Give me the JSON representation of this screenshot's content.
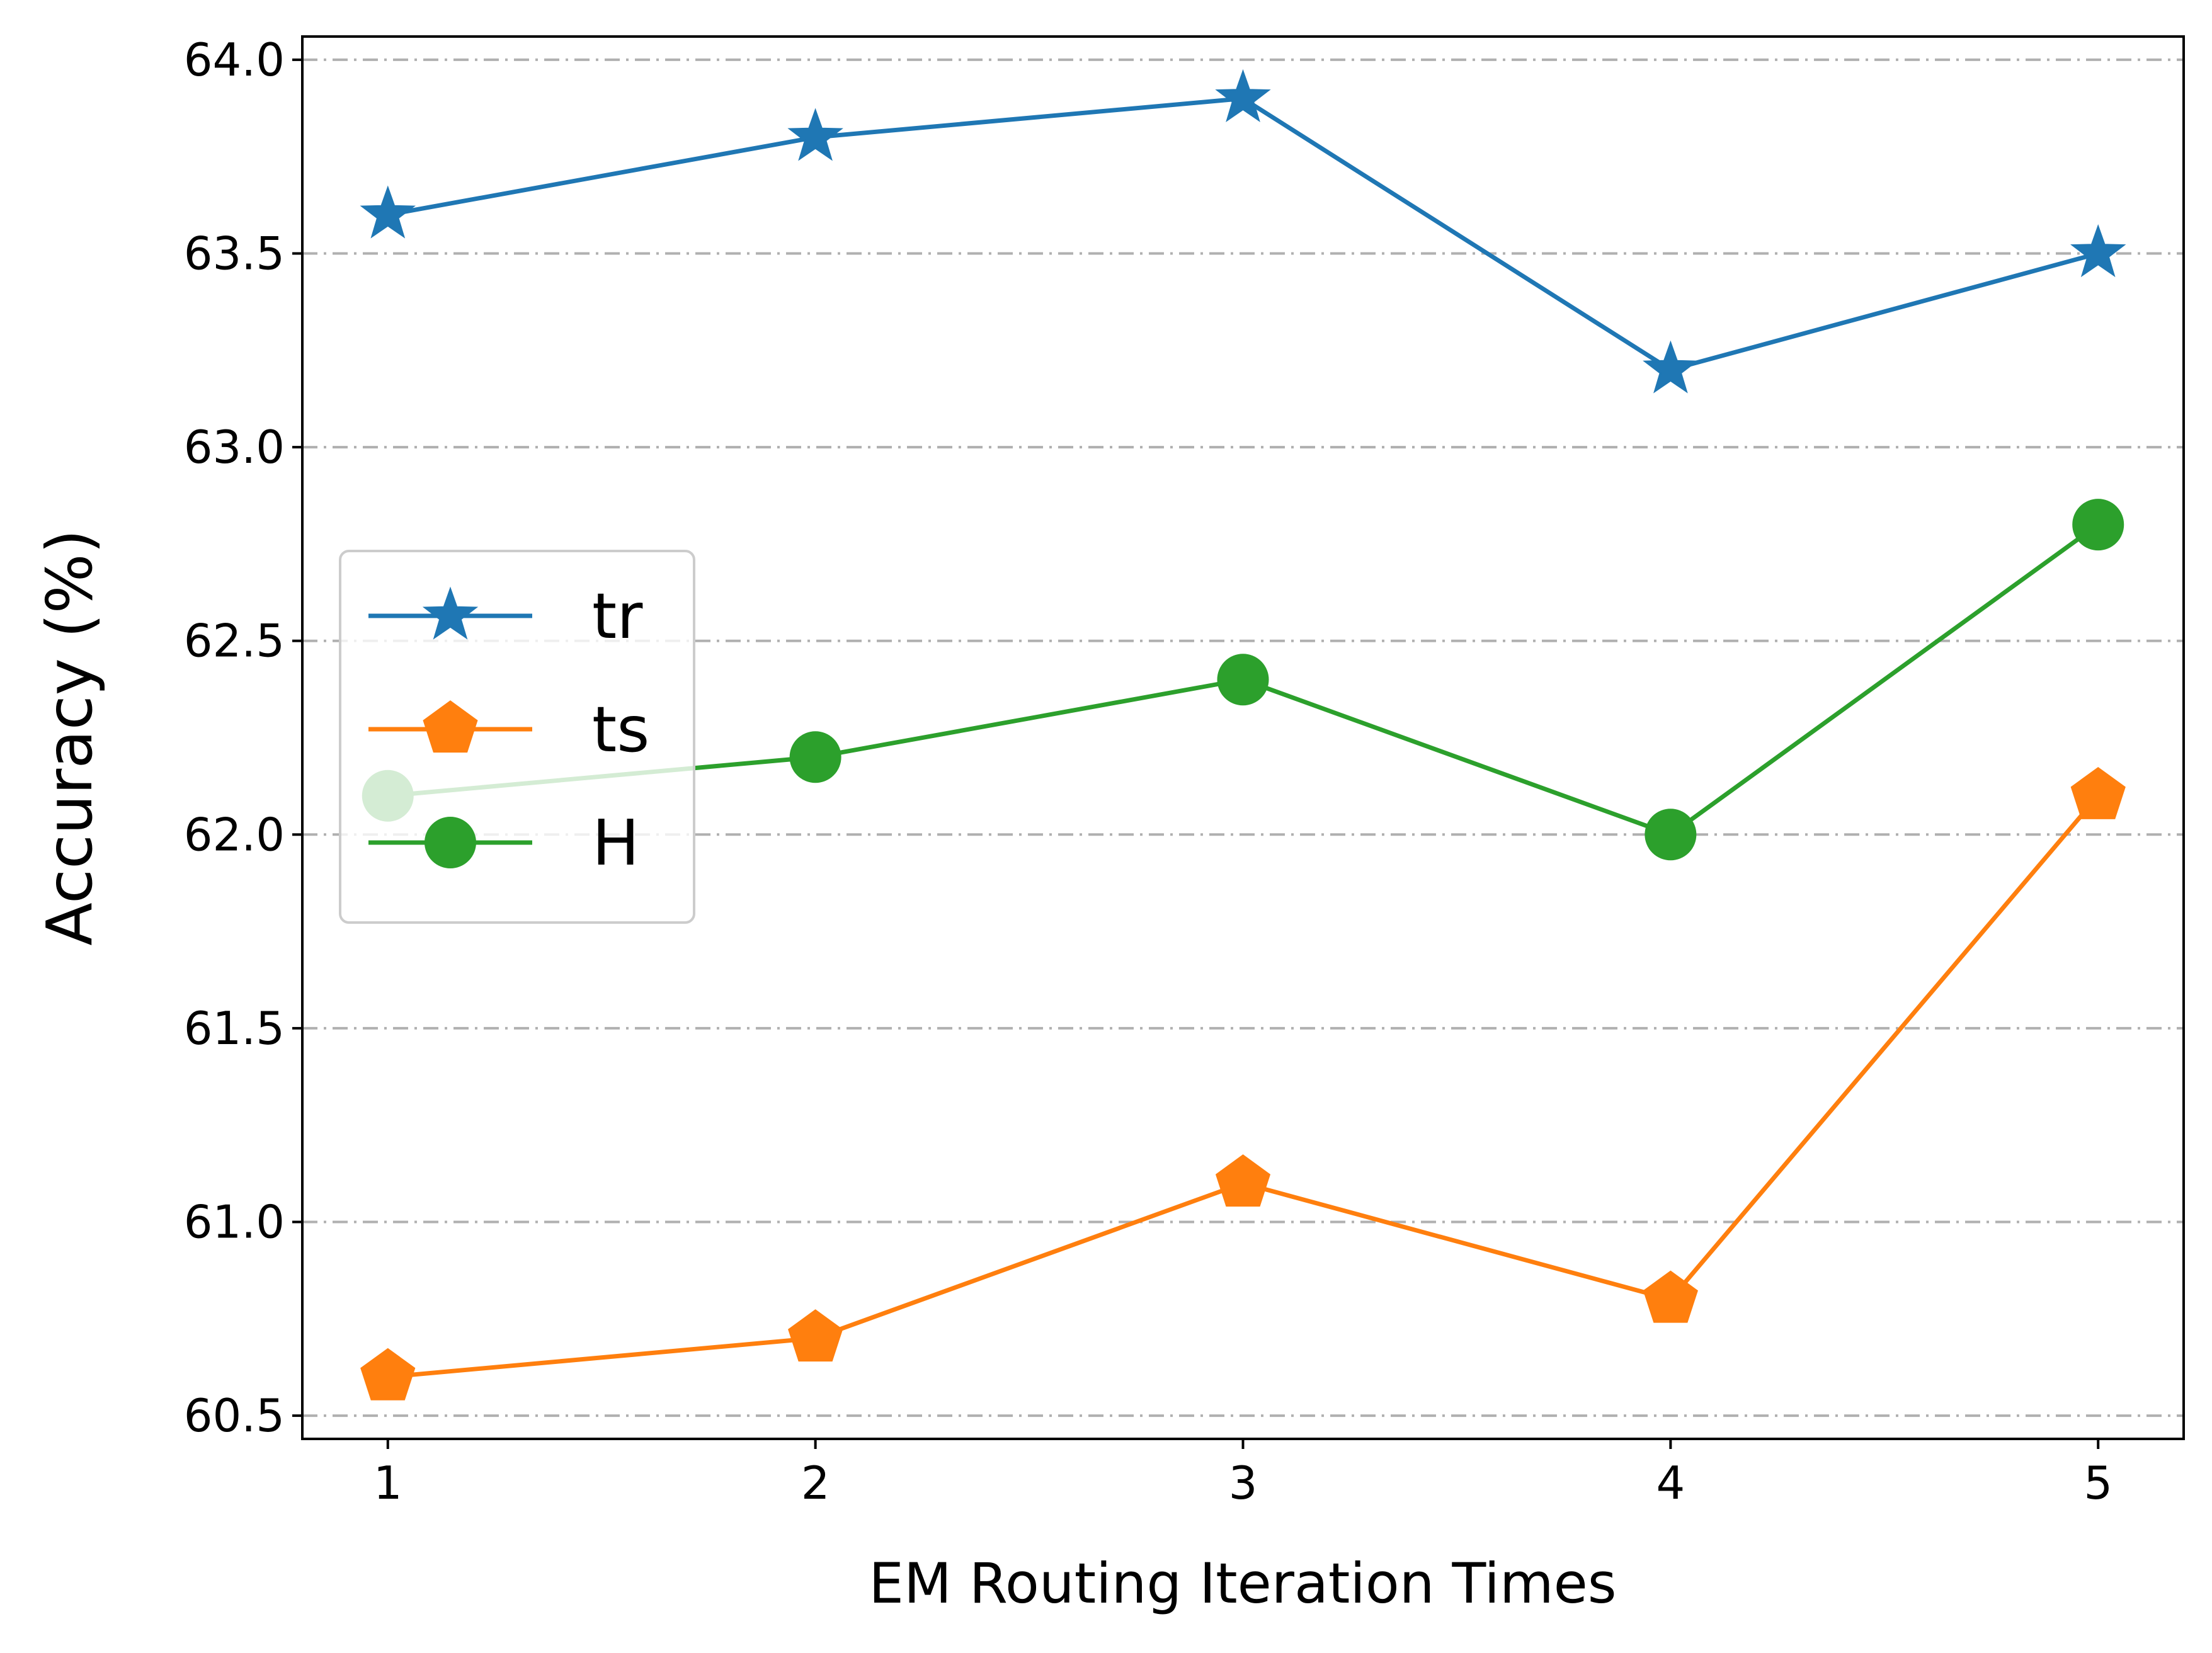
{
  "chart_data": {
    "type": "line",
    "x": [
      1,
      2,
      3,
      4,
      5
    ],
    "xlabel": "EM Routing Iteration Times",
    "ylabel": "Accuracy (%)",
    "xlim": [
      0.8,
      5.2
    ],
    "ylim": [
      60.44,
      64.06
    ],
    "xticks": [
      "1",
      "2",
      "3",
      "4",
      "5"
    ],
    "yticks": [
      "60.5",
      "61.0",
      "61.5",
      "62.0",
      "62.5",
      "63.0",
      "63.5",
      "64.0"
    ],
    "grid": "horizontal dash-dot",
    "legend_position": "center-left",
    "series": [
      {
        "name": "tr",
        "color": "#1f77b4",
        "marker": "star",
        "values": [
          63.6,
          63.8,
          63.9,
          63.2,
          63.5
        ]
      },
      {
        "name": "ts",
        "color": "#ff7f0e",
        "marker": "pentagon",
        "values": [
          60.6,
          60.7,
          61.1,
          60.8,
          62.1
        ]
      },
      {
        "name": "H",
        "color": "#2ca02c",
        "marker": "circle",
        "values": [
          62.1,
          62.2,
          62.4,
          62.0,
          62.8
        ]
      }
    ]
  }
}
